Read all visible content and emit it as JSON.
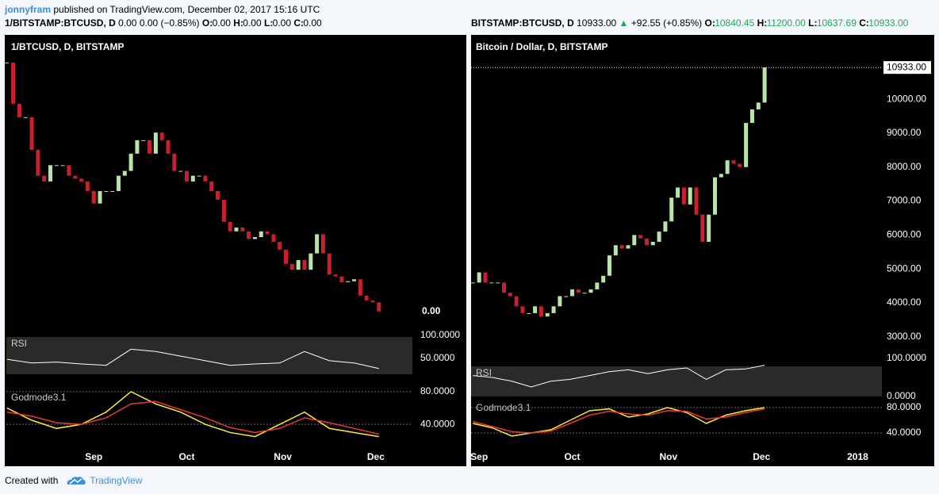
{
  "header": {
    "user": "jonnyfram",
    "published": "published on TradingView.com, December 02, 2017 15:16 UTC"
  },
  "footer": {
    "created": "Created with",
    "brand": "TradingView"
  },
  "chart_data": [
    {
      "type": "candlestick",
      "symbol": "1/BITSTAMP:BTCUSD, D",
      "quote": [
        {
          "text": "0.00 0.00 (−0.85%)"
        }
      ],
      "ohlc": [
        {
          "k": "O:",
          "v": "0.00"
        },
        {
          "k": "H:",
          "v": "0.00"
        },
        {
          "k": "L:",
          "v": "0.00"
        },
        {
          "k": "C:",
          "v": "0.00"
        }
      ],
      "value_color": "#000000",
      "title": "1/BTCUSD, D, BITSTAMP",
      "price_label": "0.00",
      "closes": [
        0.000351,
        0.000308,
        0.000294,
        0.000294,
        0.00026,
        0.000233,
        0.000227,
        0.000244,
        0.000244,
        0.000244,
        0.000233,
        0.00023,
        0.000227,
        0.000217,
        0.000204,
        0.000217,
        0.000217,
        0.000217,
        0.000233,
        0.000238,
        0.000256,
        0.00027,
        0.00027,
        0.000256,
        0.000278,
        0.00027,
        0.000256,
        0.000238,
        0.000238,
        0.000227,
        0.000233,
        0.000233,
        0.000227,
        0.000217,
        0.000208,
        0.000185,
        0.000175,
        0.000179,
        0.000175,
        0.000167,
        0.000169,
        0.000175,
        0.000172,
        0.000164,
        0.000156,
        0.000141,
        0.000135,
        0.000145,
        0.000135,
        0.000152,
        0.000172,
        0.000152,
        0.00013,
        0.000128,
        0.000122,
        0.000123,
        0.000125,
        0.000108,
        0.000103,
        0.000101,
        9.15e-05
      ],
      "up_color": "#b9e4a6",
      "down_color": "#c9202b",
      "ylim": [
        6.9e-05,
        0.000379
      ],
      "xlim": [
        -0.1,
        65.4
      ],
      "xticks": [
        {
          "value": 14,
          "label": "Sep"
        },
        {
          "value": 29,
          "label": "Oct"
        },
        {
          "value": 44.5,
          "label": "Nov"
        },
        {
          "value": 59.5,
          "label": "Dec"
        }
      ],
      "rsi": {
        "label": "RSI",
        "color": "#ffffff",
        "values": [
          48,
          40,
          42,
          38,
          35,
          70,
          65,
          55,
          45,
          35,
          38,
          40,
          65,
          45,
          40,
          28
        ],
        "ylim": [
          -8.6,
          108.6
        ],
        "yticks": [
          {
            "value": 100,
            "label": "100.0000"
          },
          {
            "value": 50,
            "label": "50.0000"
          }
        ]
      },
      "godmode": {
        "label": "Godmode3.1",
        "series": [
          {
            "color": "#ffeb3b",
            "values": [
              60,
              45,
              35,
              40,
              55,
              80,
              65,
              55,
              40,
              30,
              25,
              40,
              55,
              35,
              30,
              25
            ]
          },
          {
            "color": "#e53935",
            "values": [
              55,
              50,
              42,
              40,
              48,
              65,
              68,
              58,
              48,
              36,
              30,
              35,
              48,
              42,
              35,
              28
            ]
          }
        ],
        "ylim": [
          -8.4,
          81.9
        ],
        "yticks": [
          {
            "value": 80,
            "label": "80.0000"
          },
          {
            "value": 40,
            "label": "40.0000"
          }
        ]
      }
    },
    {
      "type": "candlestick",
      "symbol": "BITSTAMP:BTCUSD, D",
      "quote": [
        {
          "text": "10933.00"
        },
        {
          "text": "▲",
          "color": "#26a65b"
        },
        {
          "text": "+92.55 (+0.85%)"
        }
      ],
      "ohlc": [
        {
          "k": "O:",
          "v": "10840.45"
        },
        {
          "k": "H:",
          "v": "11200.00"
        },
        {
          "k": "L:",
          "v": "10637.69"
        },
        {
          "k": "C:",
          "v": "10933.00"
        }
      ],
      "value_color": "#26a65b",
      "title": "Bitcoin / Dollar, D, BITSTAMP",
      "price_label": "10933.00",
      "closes": [
        4600,
        4900,
        4600,
        4600,
        4600,
        4300,
        4200,
        3900,
        3700,
        3700,
        3900,
        3600,
        3700,
        3900,
        4200,
        4200,
        4400,
        4300,
        4300,
        4400,
        4600,
        4800,
        5400,
        5700,
        5600,
        5700,
        6000,
        5900,
        5700,
        5800,
        6100,
        6400,
        7100,
        7400,
        6900,
        7400,
        6600,
        5800,
        6600,
        7700,
        7800,
        8200,
        8100,
        8000,
        9300,
        9700,
        9900,
        10933
      ],
      "up_color": "#b9e4a6",
      "down_color": "#c9202b",
      "ylim": [
        2530,
        11870
      ],
      "xlim": [
        -0.3,
        65.9
      ],
      "yticks": [
        {
          "value": 3000,
          "label": "3000.00"
        },
        {
          "value": 4000,
          "label": "4000.00"
        },
        {
          "value": 5000,
          "label": "5000.00"
        },
        {
          "value": 6000,
          "label": "6000.00"
        },
        {
          "value": 7000,
          "label": "7000.00"
        },
        {
          "value": 8000,
          "label": "8000.00"
        },
        {
          "value": 9000,
          "label": "9000.00"
        },
        {
          "value": 10000,
          "label": "10000.00"
        }
      ],
      "xticks": [
        {
          "value": 1,
          "label": "Sep"
        },
        {
          "value": 16,
          "label": "Oct"
        },
        {
          "value": 31.5,
          "label": "Nov"
        },
        {
          "value": 46.5,
          "label": "Dec"
        },
        {
          "value": 62,
          "label": "2018"
        }
      ],
      "rsi": {
        "label": "RSI",
        "color": "#ffffff",
        "values": [
          55,
          50,
          40,
          25,
          40,
          45,
          55,
          65,
          70,
          60,
          70,
          75,
          45,
          70,
          72,
          82
        ],
        "ylim": [
          -10.4,
          108.3
        ],
        "yticks": [
          {
            "value": 100,
            "label": "100.0000"
          },
          {
            "value": 0,
            "label": "0.0000"
          }
        ]
      },
      "godmode": {
        "label": "Godmode3.1",
        "series": [
          {
            "color": "#ffeb3b",
            "values": [
              55,
              48,
              35,
              40,
              45,
              60,
              75,
              78,
              65,
              70,
              80,
              72,
              55,
              68,
              75,
              80
            ]
          },
          {
            "color": "#e53935",
            "values": [
              58,
              50,
              42,
              40,
              43,
              55,
              68,
              74,
              70,
              68,
              75,
              74,
              62,
              65,
              72,
              78
            ]
          }
        ],
        "ylim": [
          22.5,
          91.25
        ],
        "yticks": [
          {
            "value": 80,
            "label": "80.0000"
          },
          {
            "value": 40,
            "label": "40.0000"
          }
        ]
      }
    }
  ]
}
